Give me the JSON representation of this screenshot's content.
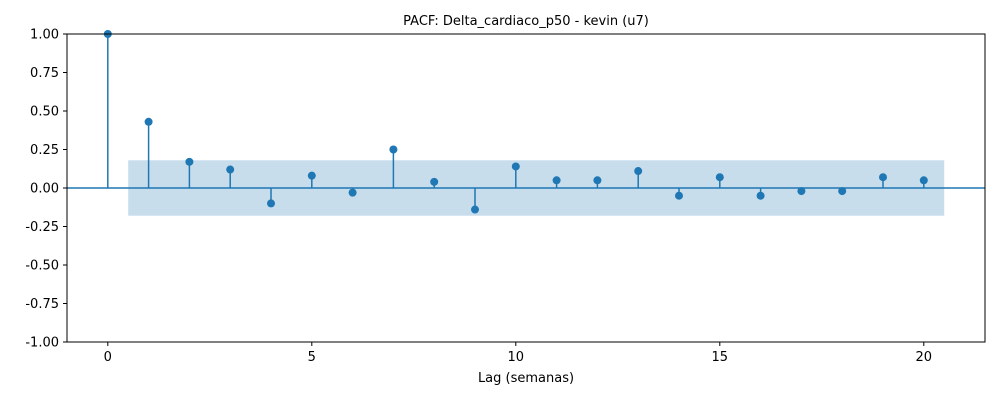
{
  "chart_data": {
    "type": "stem",
    "title": "PACF: Delta_cardiaco_p50 - kevin (u7)",
    "xlabel": "Lag (semanas)",
    "ylabel": "",
    "xlim": [
      -1,
      21.5
    ],
    "ylim": [
      -1.0,
      1.0
    ],
    "x_ticks": [
      0,
      5,
      10,
      15,
      20
    ],
    "y_ticks": [
      "-1.00",
      "-0.75",
      "-0.50",
      "-0.25",
      "0.00",
      "0.25",
      "0.50",
      "0.75",
      "1.00"
    ],
    "lags": [
      0,
      1,
      2,
      3,
      4,
      5,
      6,
      7,
      8,
      9,
      10,
      11,
      12,
      13,
      14,
      15,
      16,
      17,
      18,
      19,
      20
    ],
    "values": [
      1.0,
      0.43,
      0.17,
      0.12,
      -0.1,
      0.08,
      -0.03,
      0.25,
      0.04,
      -0.14,
      0.14,
      0.05,
      0.05,
      0.11,
      -0.05,
      0.07,
      -0.05,
      -0.02,
      -0.02,
      0.07,
      0.05
    ],
    "confidence_band": {
      "x_start": 0.5,
      "x_end": 20.5,
      "upper": 0.18,
      "lower": -0.18
    },
    "grid": false,
    "colors": {
      "stem": "#1f77b4",
      "band": "#1f77b4",
      "zero_line": "#1f77b4"
    }
  }
}
